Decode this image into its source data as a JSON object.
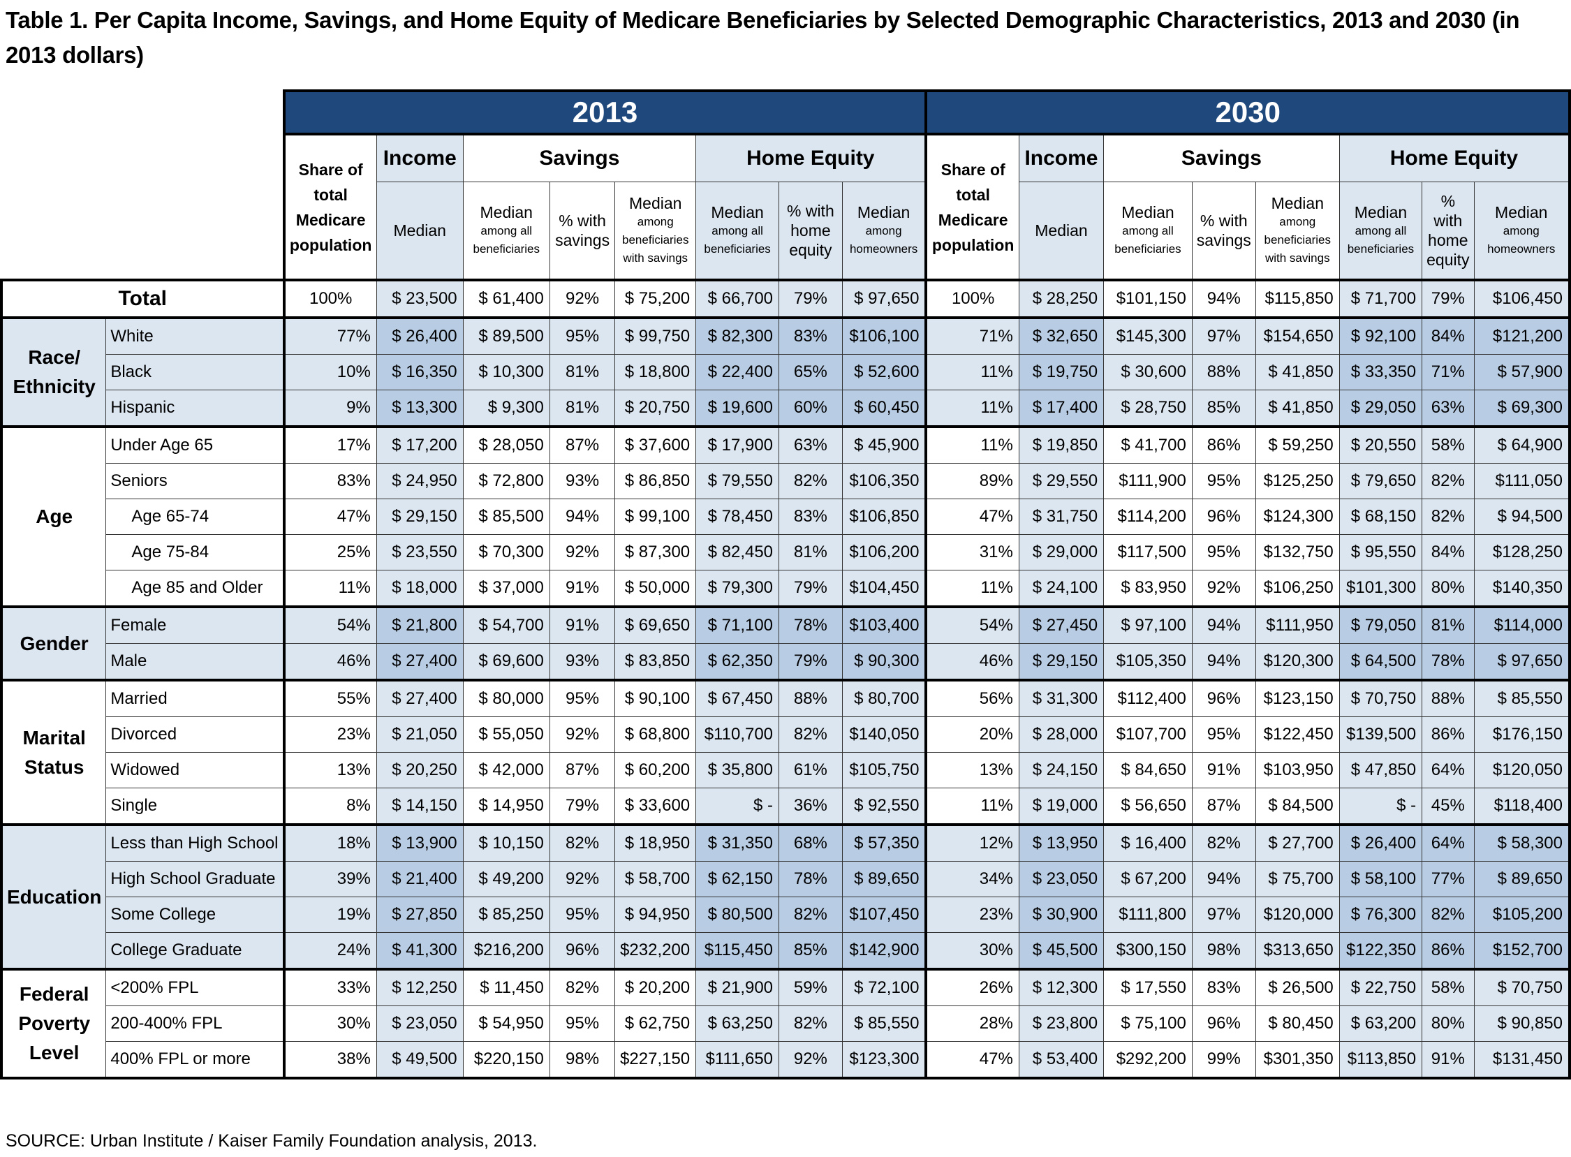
{
  "title": "Table 1. Per Capita Income, Savings, and Home Equity of Medicare Beneficiaries by Selected Demographic Characteristics, 2013 and 2030 (in 2013 dollars)",
  "source": "SOURCE: Urban Institute / Kaiser Family Foundation analysis, 2013.",
  "colors": {
    "year_header_bg": "#1f497d",
    "year_header_text": "#ffffff",
    "light_shade": "#dce6f1",
    "medium_shade": "#b8cce4",
    "border": "#000000"
  },
  "header": {
    "years": [
      "2013",
      "2030"
    ],
    "share": "Share of total Medicare population",
    "groups": {
      "income": "Income",
      "savings": "Savings",
      "home_equity": "Home Equity"
    },
    "sub": {
      "income_median": "Median",
      "sav_median_main": "Median",
      "sav_median_small": "among all beneficiaries",
      "sav_pct": "% with savings",
      "sav_with_main": "Median",
      "sav_with_small": "among beneficiaries with savings",
      "he_median_main": "Median",
      "he_median_small": "among all beneficiaries",
      "he_pct": "% with home equity",
      "he_own_main": "Median",
      "he_own_small": "among homeowners"
    }
  },
  "columns": [
    "share",
    "income_median",
    "savings_median_all",
    "savings_pct",
    "savings_median_with",
    "home_equity_median_all",
    "home_equity_pct",
    "home_equity_median_owners"
  ],
  "total": {
    "label": "Total",
    "y2013": [
      "100%",
      "$ 23,500",
      "$ 61,400",
      "92%",
      "$ 75,200",
      "$ 66,700",
      "79%",
      "$ 97,650"
    ],
    "y2030": [
      "100%",
      "$ 28,250",
      "$101,150",
      "94%",
      "$115,850",
      "$ 71,700",
      "79%",
      "$106,450"
    ]
  },
  "groups": [
    {
      "name": "Race/ Ethnicity",
      "rows": [
        {
          "label": "White",
          "y2013": [
            "77%",
            "$ 26,400",
            "$ 89,500",
            "95%",
            "$ 99,750",
            "$ 82,300",
            "83%",
            "$106,100"
          ],
          "y2030": [
            "71%",
            "$ 32,650",
            "$145,300",
            "97%",
            "$154,650",
            "$ 92,100",
            "84%",
            "$121,200"
          ]
        },
        {
          "label": "Black",
          "y2013": [
            "10%",
            "$ 16,350",
            "$ 10,300",
            "81%",
            "$ 18,800",
            "$ 22,400",
            "65%",
            "$ 52,600"
          ],
          "y2030": [
            "11%",
            "$ 19,750",
            "$ 30,600",
            "88%",
            "$ 41,850",
            "$ 33,350",
            "71%",
            "$ 57,900"
          ]
        },
        {
          "label": "Hispanic",
          "y2013": [
            "9%",
            "$ 13,300",
            "$ 9,300",
            "81%",
            "$ 20,750",
            "$ 19,600",
            "60%",
            "$ 60,450"
          ],
          "y2030": [
            "11%",
            "$ 17,400",
            "$ 28,750",
            "85%",
            "$ 41,850",
            "$ 29,050",
            "63%",
            "$ 69,300"
          ]
        }
      ]
    },
    {
      "name": "Age",
      "rows": [
        {
          "label": "Under Age 65",
          "indent": false,
          "y2013": [
            "17%",
            "$ 17,200",
            "$ 28,050",
            "87%",
            "$ 37,600",
            "$ 17,900",
            "63%",
            "$ 45,900"
          ],
          "y2030": [
            "11%",
            "$ 19,850",
            "$ 41,700",
            "86%",
            "$ 59,250",
            "$ 20,550",
            "58%",
            "$ 64,900"
          ]
        },
        {
          "label": "Seniors",
          "indent": false,
          "y2013": [
            "83%",
            "$ 24,950",
            "$ 72,800",
            "93%",
            "$ 86,850",
            "$ 79,550",
            "82%",
            "$106,350"
          ],
          "y2030": [
            "89%",
            "$ 29,550",
            "$111,900",
            "95%",
            "$125,250",
            "$ 79,650",
            "82%",
            "$111,050"
          ]
        },
        {
          "label": "Age 65-74",
          "indent": true,
          "y2013": [
            "47%",
            "$ 29,150",
            "$ 85,500",
            "94%",
            "$ 99,100",
            "$ 78,450",
            "83%",
            "$106,850"
          ],
          "y2030": [
            "47%",
            "$ 31,750",
            "$114,200",
            "96%",
            "$124,300",
            "$ 68,150",
            "82%",
            "$ 94,500"
          ]
        },
        {
          "label": "Age 75-84",
          "indent": true,
          "y2013": [
            "25%",
            "$ 23,550",
            "$ 70,300",
            "92%",
            "$ 87,300",
            "$ 82,450",
            "81%",
            "$106,200"
          ],
          "y2030": [
            "31%",
            "$ 29,000",
            "$117,500",
            "95%",
            "$132,750",
            "$ 95,550",
            "84%",
            "$128,250"
          ]
        },
        {
          "label": "Age 85 and Older",
          "indent": true,
          "y2013": [
            "11%",
            "$ 18,000",
            "$ 37,000",
            "91%",
            "$ 50,000",
            "$ 79,300",
            "79%",
            "$104,450"
          ],
          "y2030": [
            "11%",
            "$ 24,100",
            "$ 83,950",
            "92%",
            "$106,250",
            "$101,300",
            "80%",
            "$140,350"
          ]
        }
      ]
    },
    {
      "name": "Gender",
      "rows": [
        {
          "label": "Female",
          "y2013": [
            "54%",
            "$ 21,800",
            "$ 54,700",
            "91%",
            "$ 69,650",
            "$ 71,100",
            "78%",
            "$103,400"
          ],
          "y2030": [
            "54%",
            "$ 27,450",
            "$ 97,100",
            "94%",
            "$111,950",
            "$ 79,050",
            "81%",
            "$114,000"
          ]
        },
        {
          "label": "Male",
          "y2013": [
            "46%",
            "$ 27,400",
            "$ 69,600",
            "93%",
            "$ 83,850",
            "$ 62,350",
            "79%",
            "$ 90,300"
          ],
          "y2030": [
            "46%",
            "$ 29,150",
            "$105,350",
            "94%",
            "$120,300",
            "$ 64,500",
            "78%",
            "$ 97,650"
          ]
        }
      ]
    },
    {
      "name": "Marital Status",
      "rows": [
        {
          "label": "Married",
          "y2013": [
            "55%",
            "$ 27,400",
            "$ 80,000",
            "95%",
            "$ 90,100",
            "$ 67,450",
            "88%",
            "$ 80,700"
          ],
          "y2030": [
            "56%",
            "$ 31,300",
            "$112,400",
            "96%",
            "$123,150",
            "$ 70,750",
            "88%",
            "$ 85,550"
          ]
        },
        {
          "label": "Divorced",
          "y2013": [
            "23%",
            "$ 21,050",
            "$ 55,050",
            "92%",
            "$ 68,800",
            "$110,700",
            "82%",
            "$140,050"
          ],
          "y2030": [
            "20%",
            "$ 28,000",
            "$107,700",
            "95%",
            "$122,450",
            "$139,500",
            "86%",
            "$176,150"
          ]
        },
        {
          "label": "Widowed",
          "y2013": [
            "13%",
            "$ 20,250",
            "$ 42,000",
            "87%",
            "$ 60,200",
            "$ 35,800",
            "61%",
            "$105,750"
          ],
          "y2030": [
            "13%",
            "$ 24,150",
            "$ 84,650",
            "91%",
            "$103,950",
            "$ 47,850",
            "64%",
            "$120,050"
          ]
        },
        {
          "label": "Single",
          "y2013": [
            "8%",
            "$ 14,150",
            "$ 14,950",
            "79%",
            "$ 33,600",
            "$ -",
            "36%",
            "$ 92,550"
          ],
          "y2030": [
            "11%",
            "$ 19,000",
            "$ 56,650",
            "87%",
            "$ 84,500",
            "$ -",
            "45%",
            "$118,400"
          ]
        }
      ]
    },
    {
      "name": "Education",
      "rows": [
        {
          "label": "Less than High School",
          "y2013": [
            "18%",
            "$ 13,900",
            "$ 10,150",
            "82%",
            "$ 18,950",
            "$ 31,350",
            "68%",
            "$ 57,350"
          ],
          "y2030": [
            "12%",
            "$ 13,950",
            "$ 16,400",
            "82%",
            "$ 27,700",
            "$ 26,400",
            "64%",
            "$ 58,300"
          ]
        },
        {
          "label": "High School Graduate",
          "y2013": [
            "39%",
            "$ 21,400",
            "$ 49,200",
            "92%",
            "$ 58,700",
            "$ 62,150",
            "78%",
            "$ 89,650"
          ],
          "y2030": [
            "34%",
            "$ 23,050",
            "$ 67,200",
            "94%",
            "$ 75,700",
            "$ 58,100",
            "77%",
            "$ 89,650"
          ]
        },
        {
          "label": "Some College",
          "y2013": [
            "19%",
            "$ 27,850",
            "$ 85,250",
            "95%",
            "$ 94,950",
            "$ 80,500",
            "82%",
            "$107,450"
          ],
          "y2030": [
            "23%",
            "$ 30,900",
            "$111,800",
            "97%",
            "$120,000",
            "$ 76,300",
            "82%",
            "$105,200"
          ]
        },
        {
          "label": "College Graduate",
          "y2013": [
            "24%",
            "$ 41,300",
            "$216,200",
            "96%",
            "$232,200",
            "$115,450",
            "85%",
            "$142,900"
          ],
          "y2030": [
            "30%",
            "$ 45,500",
            "$300,150",
            "98%",
            "$313,650",
            "$122,350",
            "86%",
            "$152,700"
          ]
        }
      ]
    },
    {
      "name": "Federal Poverty Level",
      "rows": [
        {
          "label": "<200% FPL",
          "y2013": [
            "33%",
            "$ 12,250",
            "$ 11,450",
            "82%",
            "$ 20,200",
            "$ 21,900",
            "59%",
            "$ 72,100"
          ],
          "y2030": [
            "26%",
            "$ 12,300",
            "$ 17,550",
            "83%",
            "$ 26,500",
            "$ 22,750",
            "58%",
            "$ 70,750"
          ]
        },
        {
          "label": "200-400% FPL",
          "y2013": [
            "30%",
            "$ 23,050",
            "$ 54,950",
            "95%",
            "$ 62,750",
            "$ 63,250",
            "82%",
            "$ 85,550"
          ],
          "y2030": [
            "28%",
            "$ 23,800",
            "$ 75,100",
            "96%",
            "$ 80,450",
            "$ 63,200",
            "80%",
            "$ 90,850"
          ]
        },
        {
          "label": "400% FPL or more",
          "y2013": [
            "38%",
            "$ 49,500",
            "$220,150",
            "98%",
            "$227,150",
            "$111,650",
            "92%",
            "$123,300"
          ],
          "y2030": [
            "47%",
            "$ 53,400",
            "$292,200",
            "99%",
            "$301,350",
            "$113,850",
            "91%",
            "$131,450"
          ]
        }
      ]
    }
  ]
}
